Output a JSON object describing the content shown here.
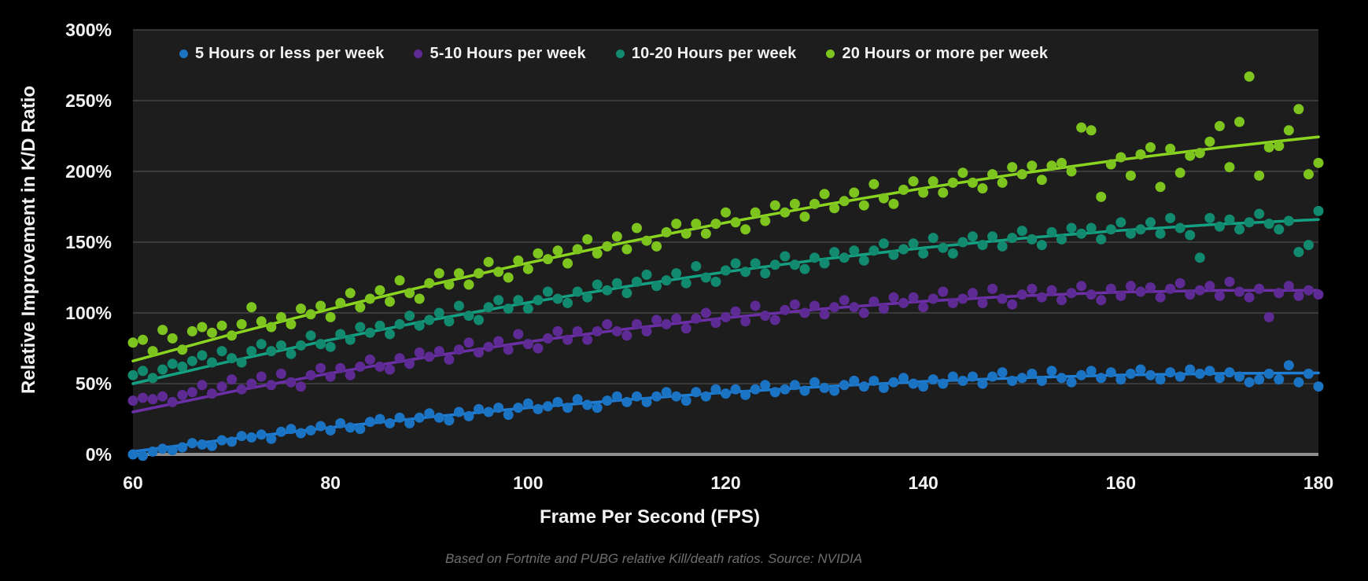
{
  "chart_data": {
    "type": "scatter",
    "title": "",
    "xlabel": "Frame Per Second (FPS)",
    "ylabel": "Relative Improvement in K/D Ratio",
    "caption": "Based on Fortnite and PUBG relative Kill/death ratios. Source: NVIDIA",
    "x_range": [
      60,
      180
    ],
    "x_step": 1,
    "ylim": [
      0,
      300
    ],
    "x_ticks": [
      60,
      80,
      100,
      120,
      140,
      160,
      180
    ],
    "y_tick_values": [
      0,
      50,
      100,
      150,
      200,
      250,
      300
    ],
    "y_tick_labels": [
      "0%",
      "50%",
      "100%",
      "150%",
      "200%",
      "250%",
      "300%"
    ],
    "grid": "horizontal",
    "legend_position": "top-inside",
    "colors": {
      "background": "#000000",
      "plot_background": "#1d1d1d",
      "gridline": "#4b4b4b",
      "axis_line": "#8f8f8f",
      "text": "#f2f2f2",
      "caption": "#6e6e6e"
    },
    "trend_x": [
      60,
      70,
      80,
      90,
      100,
      110,
      120,
      130,
      140,
      150,
      160,
      170,
      180
    ],
    "series": [
      {
        "name": "5 Hours or less per week",
        "dot_color": "#1b73c4",
        "line_color": "#1f7fd6",
        "trend": [
          2,
          11,
          19,
          26.4,
          33,
          38.7,
          43.8,
          48,
          51.5,
          54.2,
          56.1,
          57.2,
          57.6
        ],
        "values": [
          0,
          -1,
          2,
          4,
          3,
          5,
          8,
          7,
          6,
          10,
          9,
          13,
          12,
          14,
          11,
          16,
          18,
          15,
          17,
          20,
          17,
          22,
          19,
          18,
          23,
          25,
          22,
          26,
          22,
          26,
          29,
          26,
          24,
          30,
          27,
          32,
          30,
          33,
          28,
          33,
          36,
          32,
          34,
          37,
          33,
          39,
          35,
          33,
          38,
          41,
          37,
          41,
          37,
          41,
          44,
          41,
          38,
          44,
          41,
          46,
          43,
          46,
          42,
          46,
          49,
          44,
          46,
          49,
          45,
          51,
          47,
          45,
          49,
          52,
          48,
          52,
          47,
          51,
          54,
          50,
          48,
          53,
          50,
          55,
          52,
          55,
          50,
          55,
          58,
          52,
          54,
          57,
          52,
          59,
          54,
          51,
          56,
          59,
          54,
          58,
          53,
          57,
          60,
          56,
          53,
          58,
          55,
          60,
          57,
          59,
          54,
          58,
          55,
          51,
          53,
          57,
          53,
          63,
          51,
          57,
          48
        ]
      },
      {
        "name": "5-10 Hours per week",
        "dot_color": "#5e2b94",
        "line_color": "#6c2fa8",
        "trend": [
          30,
          44.4,
          57.4,
          69.1,
          79.6,
          88.7,
          96.5,
          103,
          108.2,
          112.1,
          114.7,
          115.9,
          115.9
        ],
        "values": [
          38,
          40,
          39,
          41,
          37,
          42,
          44,
          49,
          43,
          48,
          53,
          46,
          50,
          55,
          49,
          57,
          51,
          48,
          56,
          61,
          55,
          61,
          56,
          62,
          67,
          62,
          60,
          68,
          64,
          72,
          69,
          73,
          67,
          74,
          79,
          72,
          76,
          80,
          74,
          85,
          78,
          75,
          82,
          87,
          81,
          87,
          81,
          87,
          92,
          87,
          84,
          92,
          87,
          95,
          92,
          96,
          89,
          96,
          100,
          93,
          97,
          101,
          94,
          105,
          98,
          95,
          102,
          106,
          100,
          105,
          99,
          104,
          109,
          104,
          100,
          108,
          103,
          111,
          107,
          111,
          104,
          110,
          115,
          107,
          110,
          114,
          107,
          117,
          110,
          106,
          113,
          117,
          111,
          116,
          109,
          114,
          119,
          113,
          109,
          117,
          112,
          119,
          115,
          118,
          111,
          117,
          121,
          113,
          116,
          119,
          112,
          122,
          115,
          111,
          117,
          97,
          114,
          119,
          112,
          116,
          113
        ]
      },
      {
        "name": "10-20 Hours per week",
        "dot_color": "#128a6f",
        "line_color": "#14a183",
        "trend": [
          50,
          66.1,
          81,
          94.8,
          107.3,
          118.7,
          129,
          138.1,
          146,
          152.7,
          158.3,
          162.7,
          166
        ],
        "values": [
          56,
          59,
          54,
          60,
          64,
          62,
          66,
          70,
          65,
          73,
          68,
          65,
          73,
          78,
          73,
          77,
          71,
          77,
          84,
          78,
          76,
          85,
          81,
          90,
          86,
          91,
          85,
          92,
          98,
          91,
          95,
          100,
          94,
          105,
          98,
          95,
          104,
          109,
          103,
          109,
          103,
          109,
          115,
          110,
          107,
          115,
          111,
          120,
          116,
          121,
          114,
          122,
          127,
          119,
          123,
          128,
          121,
          133,
          125,
          122,
          130,
          135,
          129,
          135,
          128,
          134,
          140,
          134,
          131,
          139,
          135,
          143,
          139,
          144,
          137,
          144,
          149,
          141,
          145,
          149,
          142,
          153,
          146,
          142,
          150,
          154,
          148,
          154,
          147,
          153,
          158,
          152,
          148,
          157,
          152,
          160,
          156,
          160,
          152,
          159,
          164,
          156,
          159,
          164,
          156,
          167,
          160,
          155,
          139,
          167,
          161,
          166,
          159,
          164,
          170,
          163,
          159,
          165,
          143,
          148,
          172
        ]
      },
      {
        "name": "20 Hours or more per week",
        "dot_color": "#7dc41e",
        "line_color": "#8bd41f",
        "trend": [
          66,
          84.9,
          102.8,
          119.6,
          135.3,
          150.1,
          163.8,
          176.4,
          188.1,
          198.7,
          208.3,
          216.8,
          224.4
        ],
        "values": [
          79,
          81,
          73,
          88,
          82,
          74,
          87,
          90,
          86,
          91,
          84,
          92,
          104,
          94,
          90,
          97,
          92,
          103,
          99,
          105,
          97,
          107,
          114,
          104,
          110,
          116,
          108,
          123,
          114,
          110,
          121,
          128,
          120,
          128,
          120,
          128,
          136,
          129,
          125,
          137,
          131,
          142,
          138,
          144,
          135,
          145,
          152,
          142,
          147,
          154,
          145,
          160,
          151,
          147,
          157,
          163,
          156,
          163,
          156,
          163,
          171,
          164,
          159,
          171,
          165,
          176,
          171,
          177,
          168,
          177,
          184,
          174,
          179,
          185,
          176,
          191,
          181,
          177,
          187,
          193,
          185,
          193,
          185,
          192,
          199,
          192,
          188,
          198,
          192,
          203,
          198,
          204,
          194,
          204,
          206,
          200,
          231,
          229,
          182,
          205,
          210,
          197,
          212,
          217,
          189,
          216,
          199,
          211,
          213,
          221,
          232,
          203,
          235,
          267,
          197,
          217,
          218,
          229,
          244,
          198,
          206
        ]
      }
    ]
  }
}
